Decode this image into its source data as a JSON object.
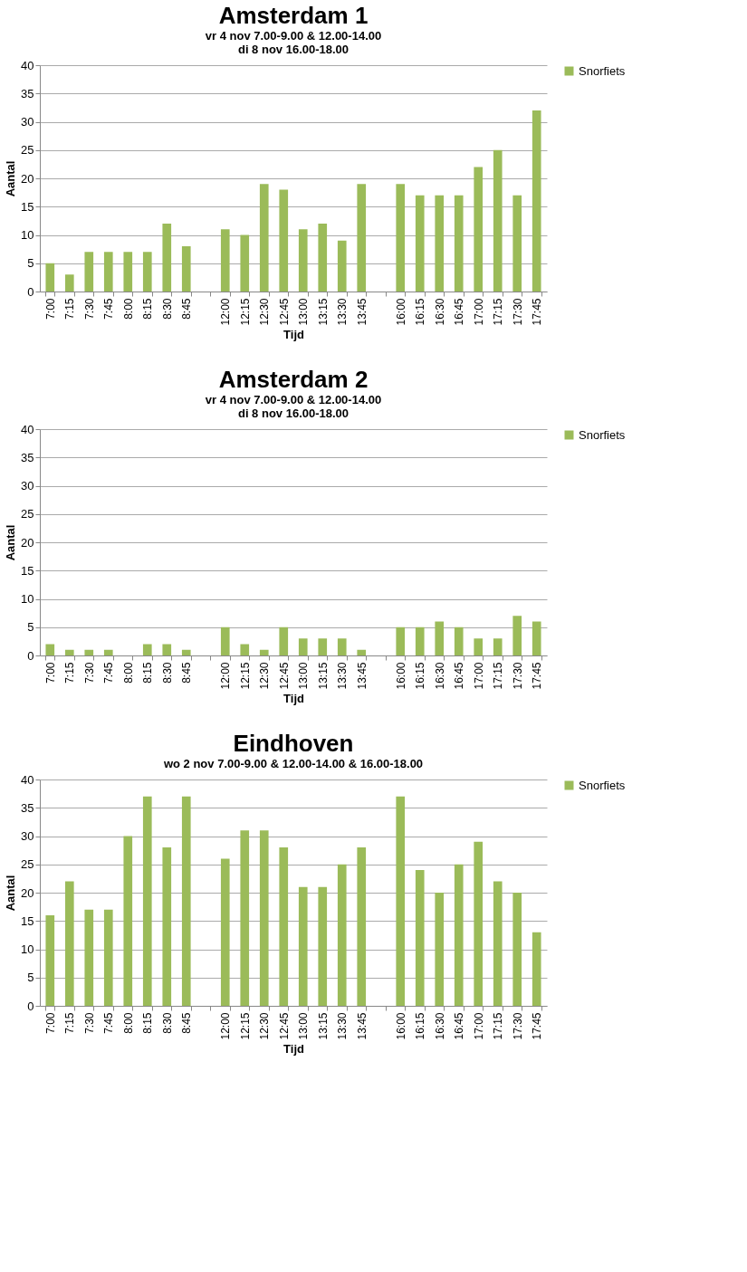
{
  "chart_data": [
    {
      "type": "bar",
      "title": "Amsterdam 1",
      "subtitle": "vr 4 nov 7.00-9.00 & 12.00-14.00\ndi 8 nov 16.00-18.00",
      "xlabel": "Tijd",
      "ylabel": "Aantal",
      "categories": [
        "7:00",
        "7:15",
        "7:30",
        "7:45",
        "8:00",
        "8:15",
        "8:30",
        "8:45",
        null,
        "12:00",
        "12:15",
        "12:30",
        "12:45",
        "13:00",
        "13:15",
        "13:30",
        "13:45",
        null,
        "16:00",
        "16:15",
        "16:30",
        "16:45",
        "17:00",
        "17:15",
        "17:30",
        "17:45"
      ],
      "series": [
        {
          "name": "Snorfiets",
          "color": "#9bbb59",
          "values": [
            5,
            3,
            7,
            7,
            7,
            7,
            12,
            8,
            null,
            11,
            10,
            19,
            18,
            11,
            12,
            9,
            19,
            null,
            19,
            17,
            17,
            17,
            22,
            25,
            17,
            32
          ]
        }
      ],
      "ylim": [
        0,
        40
      ],
      "yticks": [
        0,
        5,
        10,
        15,
        20,
        25,
        30,
        35,
        40
      ],
      "grid": "y",
      "legend": "right"
    },
    {
      "type": "bar",
      "title": "Amsterdam 2",
      "subtitle": "vr 4 nov 7.00-9.00 & 12.00-14.00\ndi 8 nov 16.00-18.00",
      "xlabel": "Tijd",
      "ylabel": "Aantal",
      "categories": [
        "7:00",
        "7:15",
        "7:30",
        "7:45",
        "8:00",
        "8:15",
        "8:30",
        "8:45",
        null,
        "12:00",
        "12:15",
        "12:30",
        "12:45",
        "13:00",
        "13:15",
        "13:30",
        "13:45",
        null,
        "16:00",
        "16:15",
        "16:30",
        "16:45",
        "17:00",
        "17:15",
        "17:30",
        "17:45"
      ],
      "series": [
        {
          "name": "Snorfiets",
          "color": "#9bbb59",
          "values": [
            2,
            1,
            1,
            1,
            0,
            2,
            2,
            1,
            null,
            5,
            2,
            1,
            5,
            3,
            3,
            3,
            1,
            null,
            5,
            5,
            6,
            5,
            3,
            3,
            7,
            6
          ]
        }
      ],
      "ylim": [
        0,
        40
      ],
      "yticks": [
        0,
        5,
        10,
        15,
        20,
        25,
        30,
        35,
        40
      ],
      "grid": "y",
      "legend": "right"
    },
    {
      "type": "bar",
      "title": "Eindhoven",
      "subtitle": "wo 2 nov 7.00-9.00 & 12.00-14.00 & 16.00-18.00",
      "xlabel": "Tijd",
      "ylabel": "Aantal",
      "categories": [
        "7:00",
        "7:15",
        "7:30",
        "7:45",
        "8:00",
        "8:15",
        "8:30",
        "8:45",
        null,
        "12:00",
        "12:15",
        "12:30",
        "12:45",
        "13:00",
        "13:15",
        "13:30",
        "13:45",
        null,
        "16:00",
        "16:15",
        "16:30",
        "16:45",
        "17:00",
        "17:15",
        "17:30",
        "17:45"
      ],
      "series": [
        {
          "name": "Snorfiets",
          "color": "#9bbb59",
          "values": [
            16,
            22,
            17,
            17,
            30,
            37,
            28,
            37,
            null,
            26,
            31,
            31,
            28,
            21,
            21,
            25,
            28,
            null,
            37,
            24,
            20,
            25,
            29,
            22,
            20,
            13
          ]
        }
      ],
      "ylim": [
        0,
        40
      ],
      "yticks": [
        0,
        5,
        10,
        15,
        20,
        25,
        30,
        35,
        40
      ],
      "grid": "y",
      "legend": "right"
    }
  ]
}
